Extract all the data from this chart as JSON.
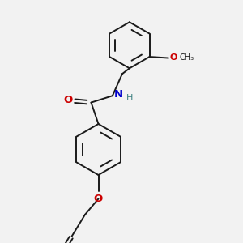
{
  "bg_color": "#f2f2f2",
  "bond_color": "#1a1a1a",
  "O_color": "#cc0000",
  "N_color": "#0000cc",
  "H_color": "#3d8080",
  "font_size": 7.5,
  "line_width": 1.4,
  "figsize": [
    3.0,
    3.0
  ],
  "dpi": 100,
  "xlim": [
    0,
    10
  ],
  "ylim": [
    0,
    10
  ]
}
